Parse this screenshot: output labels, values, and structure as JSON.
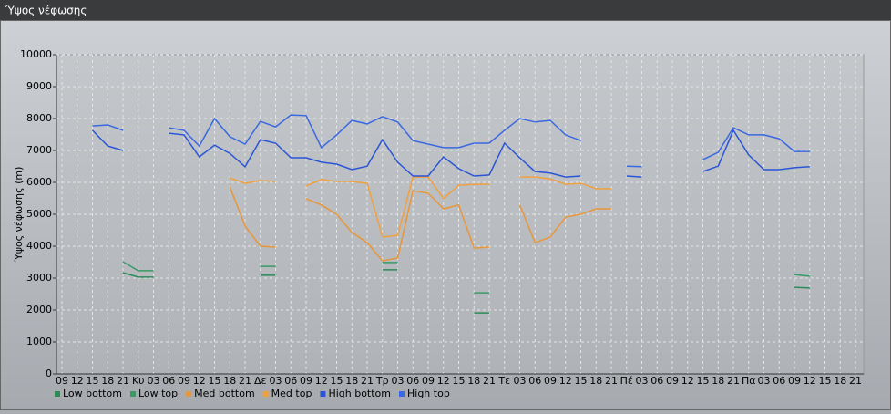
{
  "chart_data": {
    "type": "line",
    "title": "Ύψος νέφωσης",
    "y_label": "Ύψος νέφωσης (m)",
    "categories": [
      "09",
      "12",
      "15",
      "18",
      "21",
      "Κυ",
      "03",
      "06",
      "09",
      "12",
      "15",
      "18",
      "21",
      "Δε",
      "03",
      "06",
      "09",
      "12",
      "15",
      "18",
      "21",
      "Τρ",
      "03",
      "06",
      "09",
      "12",
      "15",
      "18",
      "21",
      "Τε",
      "03",
      "06",
      "09",
      "12",
      "15",
      "18",
      "21",
      "Πέ",
      "03",
      "06",
      "09",
      "12",
      "15",
      "18",
      "21",
      "Πα",
      "03",
      "06",
      "09",
      "12",
      "15",
      "18",
      "21"
    ],
    "ylim": [
      0,
      10000
    ],
    "yticks": [
      0,
      1000,
      2000,
      3000,
      4000,
      5000,
      6000,
      7000,
      8000,
      9000,
      10000
    ],
    "grid": true,
    "series": [
      {
        "name": "Low bottom",
        "color": "#2e8b57",
        "values": [
          null,
          null,
          null,
          null,
          3170,
          3030,
          3030,
          null,
          null,
          null,
          null,
          null,
          null,
          3090,
          3090,
          null,
          null,
          null,
          null,
          null,
          null,
          3260,
          3260,
          null,
          null,
          null,
          null,
          1910,
          1910,
          null,
          null,
          null,
          null,
          null,
          null,
          null,
          null,
          null,
          null,
          null,
          null,
          null,
          null,
          null,
          null,
          null,
          null,
          null,
          2710,
          2690,
          null,
          null,
          null
        ]
      },
      {
        "name": "Low top",
        "color": "#3a9a66",
        "values": [
          null,
          null,
          null,
          null,
          3510,
          3230,
          3230,
          null,
          null,
          null,
          null,
          null,
          null,
          3370,
          3370,
          null,
          null,
          null,
          null,
          null,
          null,
          3490,
          3490,
          null,
          null,
          null,
          null,
          2540,
          2540,
          null,
          null,
          null,
          null,
          null,
          null,
          null,
          null,
          null,
          null,
          null,
          null,
          null,
          null,
          null,
          null,
          null,
          null,
          null,
          3110,
          3060,
          null,
          null,
          null
        ]
      },
      {
        "name": "Med bottom",
        "color": "#e8963a",
        "values": [
          null,
          null,
          null,
          null,
          null,
          null,
          null,
          null,
          null,
          null,
          null,
          5860,
          4630,
          4000,
          3970,
          null,
          5490,
          5290,
          5000,
          4430,
          4110,
          3540,
          3630,
          5740,
          5660,
          5170,
          5290,
          3940,
          3970,
          null,
          5290,
          4110,
          4290,
          4910,
          5000,
          5170,
          5170,
          null,
          null,
          null,
          null,
          null,
          null,
          null,
          null,
          null,
          null,
          null,
          null,
          null,
          null,
          null,
          null
        ]
      },
      {
        "name": "Med top",
        "color": "#f0a040",
        "values": [
          null,
          null,
          null,
          null,
          null,
          null,
          null,
          null,
          null,
          null,
          null,
          6140,
          5970,
          6060,
          6030,
          null,
          5890,
          6090,
          6030,
          6030,
          5970,
          4290,
          4340,
          6170,
          6170,
          5490,
          5910,
          5940,
          5940,
          null,
          6170,
          6170,
          6110,
          5940,
          5970,
          5800,
          5800,
          null,
          null,
          null,
          null,
          null,
          null,
          null,
          null,
          null,
          null,
          null,
          null,
          null,
          null,
          null,
          null
        ]
      },
      {
        "name": "High bottom",
        "color": "#2a55d6",
        "values": [
          null,
          null,
          7630,
          7140,
          7000,
          null,
          null,
          7540,
          7490,
          6800,
          7170,
          6910,
          6490,
          7340,
          7230,
          6770,
          6770,
          6630,
          6570,
          6400,
          6510,
          7340,
          6630,
          6200,
          6200,
          6800,
          6430,
          6200,
          6230,
          7230,
          6770,
          6340,
          6290,
          6170,
          6200,
          null,
          null,
          6200,
          6170,
          null,
          null,
          null,
          6340,
          6510,
          7630,
          6860,
          6400,
          6400,
          6460,
          6490,
          null,
          null,
          null
        ]
      },
      {
        "name": "High top",
        "color": "#3a68e0",
        "values": [
          null,
          null,
          7770,
          7800,
          7630,
          null,
          null,
          7710,
          7630,
          7140,
          8000,
          7430,
          7200,
          7910,
          7740,
          8110,
          8090,
          7090,
          7490,
          7940,
          7830,
          8060,
          7890,
          7310,
          7200,
          7090,
          7090,
          7230,
          7230,
          7630,
          8000,
          7890,
          7940,
          7490,
          7310,
          null,
          null,
          6510,
          6490,
          null,
          null,
          null,
          6710,
          6940,
          7710,
          7490,
          7490,
          7370,
          6970,
          6970,
          null,
          null,
          null
        ]
      }
    ]
  }
}
